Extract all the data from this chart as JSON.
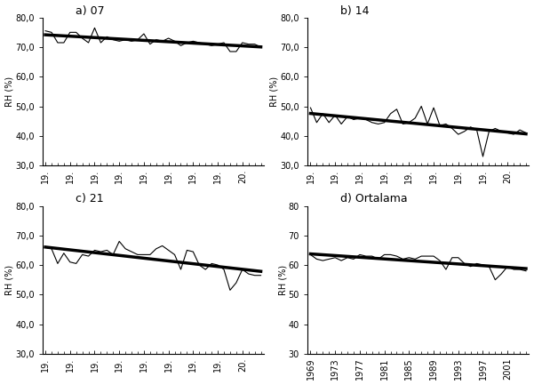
{
  "years": [
    1969,
    1970,
    1971,
    1972,
    1973,
    1974,
    1975,
    1976,
    1977,
    1978,
    1979,
    1980,
    1981,
    1982,
    1983,
    1984,
    1985,
    1986,
    1987,
    1988,
    1989,
    1990,
    1991,
    1992,
    1993,
    1994,
    1995,
    1996,
    1997,
    1998,
    1999,
    2000,
    2001,
    2002,
    2003,
    2004
  ],
  "panel_a_label": "a) 07",
  "panel_b_label": "b) 14",
  "panel_c_label": "c) 21",
  "panel_d_label": "d) Ortalama",
  "panel_a_data": [
    75.5,
    75.0,
    71.5,
    71.5,
    75.0,
    75.0,
    73.0,
    71.5,
    76.5,
    71.5,
    73.5,
    72.5,
    72.0,
    72.5,
    72.0,
    72.5,
    74.5,
    71.0,
    72.5,
    72.0,
    73.0,
    72.0,
    70.5,
    71.5,
    72.0,
    71.5,
    71.0,
    70.5,
    71.0,
    71.5,
    68.5,
    68.5,
    71.5,
    71.0,
    71.0,
    70.0
  ],
  "panel_b_data": [
    49.5,
    44.5,
    47.5,
    44.5,
    47.0,
    44.0,
    46.5,
    45.5,
    46.0,
    45.5,
    44.5,
    44.0,
    44.5,
    47.5,
    49.0,
    44.0,
    44.5,
    46.0,
    50.0,
    44.0,
    49.5,
    43.5,
    44.0,
    42.5,
    40.5,
    41.5,
    43.0,
    42.0,
    33.0,
    41.5,
    42.5,
    41.5,
    41.0,
    40.5,
    42.0,
    41.0
  ],
  "panel_c_data": [
    66.0,
    65.5,
    60.5,
    64.0,
    61.0,
    60.5,
    63.5,
    63.0,
    65.0,
    64.5,
    65.0,
    63.5,
    68.0,
    65.5,
    64.5,
    63.5,
    63.5,
    63.5,
    65.5,
    66.5,
    65.0,
    63.5,
    58.5,
    65.0,
    64.5,
    60.0,
    58.5,
    60.5,
    60.0,
    58.5,
    51.5,
    54.0,
    58.5,
    57.0,
    56.5,
    56.5
  ],
  "panel_d_data": [
    63.5,
    62.0,
    61.5,
    62.0,
    62.5,
    61.5,
    62.5,
    62.0,
    63.5,
    63.0,
    63.0,
    62.0,
    63.5,
    63.5,
    63.0,
    62.0,
    62.5,
    62.0,
    63.0,
    63.0,
    63.0,
    61.5,
    58.5,
    62.5,
    62.5,
    60.5,
    59.5,
    60.5,
    60.0,
    59.5,
    55.0,
    57.0,
    59.5,
    58.5,
    58.5,
    58.0
  ],
  "ylim_abc": [
    30.0,
    80.0
  ],
  "ylim_d": [
    30,
    80
  ],
  "yticks_abc": [
    30.0,
    40.0,
    50.0,
    60.0,
    70.0,
    80.0
  ],
  "yticks_d": [
    30,
    40,
    50,
    60,
    70,
    80
  ],
  "ylabel": "RH (%)",
  "xtick_positions": [
    1969,
    1973,
    1977,
    1981,
    1985,
    1989,
    1993,
    1997,
    2001
  ],
  "xtick_labels_abc": [
    "19.",
    "19.",
    "19.",
    "19.",
    "19.",
    "19.",
    "19.",
    "19.",
    "20."
  ],
  "xtick_labels_d": [
    "1969",
    "1973",
    "1977",
    "1981",
    "1985",
    "1989",
    "1993",
    "1997",
    "2001"
  ],
  "line_color": "#000000",
  "trend_color": "#000000",
  "trend_linewidth": 2.5,
  "data_linewidth": 0.8,
  "background_color": "#ffffff",
  "title_fontsize": 9,
  "tick_fontsize": 7,
  "ylabel_fontsize": 7
}
